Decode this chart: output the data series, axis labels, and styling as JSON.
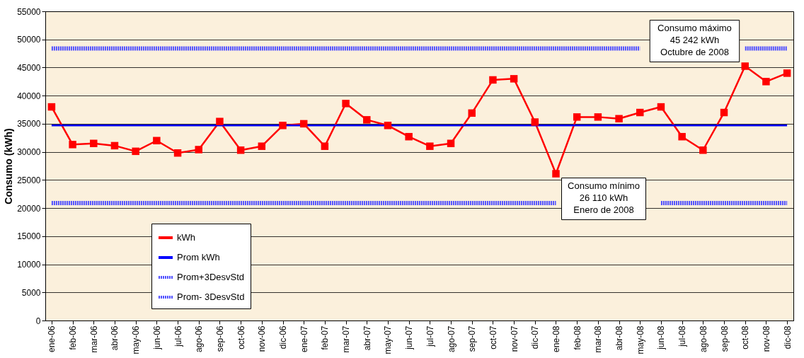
{
  "chart_data": {
    "type": "line",
    "ylabel": "Consumo (kWh)",
    "categories": [
      "ene-06",
      "feb-06",
      "mar-06",
      "abr-06",
      "may-06",
      "jun-06",
      "jul-06",
      "ago-06",
      "sep-06",
      "oct-06",
      "nov-06",
      "dic-06",
      "ene-07",
      "feb-07",
      "mar-07",
      "abr-07",
      "may-07",
      "jun-07",
      "jul-07",
      "ago-07",
      "sep-07",
      "oct-07",
      "nov-07",
      "dic-07",
      "ene-08",
      "feb-08",
      "mar-08",
      "abr-08",
      "may-08",
      "jun-08",
      "jul-08",
      "ago-08",
      "sep-08",
      "oct-08",
      "nov-08",
      "dic-08"
    ],
    "series": [
      {
        "name": "kWh",
        "color": "#ff0000",
        "marker": "square",
        "line_style": "solid",
        "values": [
          38000,
          31300,
          31500,
          31100,
          30100,
          32000,
          29800,
          30400,
          35400,
          30300,
          31000,
          34700,
          35000,
          31000,
          38600,
          35700,
          34700,
          32700,
          31000,
          31500,
          36900,
          42800,
          43000,
          35300,
          26110,
          36200,
          36200,
          35900,
          37000,
          38000,
          32700,
          30300,
          37000,
          45242,
          42500,
          44000
        ]
      },
      {
        "name": "Prom kWh",
        "color": "#0000ff",
        "marker": "none",
        "line_style": "solid",
        "values": [
          34700,
          34700,
          34700,
          34700,
          34700,
          34700,
          34700,
          34700,
          34700,
          34700,
          34700,
          34700,
          34700,
          34700,
          34700,
          34700,
          34700,
          34700,
          34700,
          34700,
          34700,
          34700,
          34700,
          34700,
          34700,
          34700,
          34700,
          34700,
          34700,
          34700,
          34700,
          34700,
          34700,
          34700,
          34700,
          34700
        ]
      },
      {
        "name": "Prom+3DesvStd",
        "color": "#4f4fff",
        "marker": "none",
        "line_style": "dotted",
        "values": [
          48400,
          48400,
          48400,
          48400,
          48400,
          48400,
          48400,
          48400,
          48400,
          48400,
          48400,
          48400,
          48400,
          48400,
          48400,
          48400,
          48400,
          48400,
          48400,
          48400,
          48400,
          48400,
          48400,
          48400,
          48400,
          48400,
          48400,
          48400,
          48400,
          null,
          null,
          null,
          null,
          48400,
          48400,
          48400
        ]
      },
      {
        "name": "Prom- 3DesvStd",
        "color": "#4f4fff",
        "marker": "none",
        "line_style": "dotted",
        "values": [
          20900,
          20900,
          20900,
          20900,
          20900,
          20900,
          20900,
          20900,
          20900,
          20900,
          20900,
          20900,
          20900,
          20900,
          20900,
          20900,
          20900,
          20900,
          20900,
          20900,
          20900,
          20900,
          20900,
          20900,
          20900,
          null,
          null,
          null,
          null,
          20900,
          20900,
          20900,
          20900,
          20900,
          20900,
          20900
        ]
      }
    ],
    "ylim": [
      0,
      55000
    ],
    "yticks": [
      0,
      5000,
      10000,
      15000,
      20000,
      25000,
      30000,
      35000,
      40000,
      45000,
      50000,
      55000
    ],
    "grid": "y",
    "legend": "bottom left",
    "annotations": [
      {
        "text": "Consumo máximo\n45 242 kWh\nOctubre de 2008",
        "x": "oct-08",
        "y": 45242
      },
      {
        "text": "Consumo mínimo\n26 110 kWh\nEnero de 2008",
        "x": "ene-08",
        "y": 26110
      }
    ]
  }
}
